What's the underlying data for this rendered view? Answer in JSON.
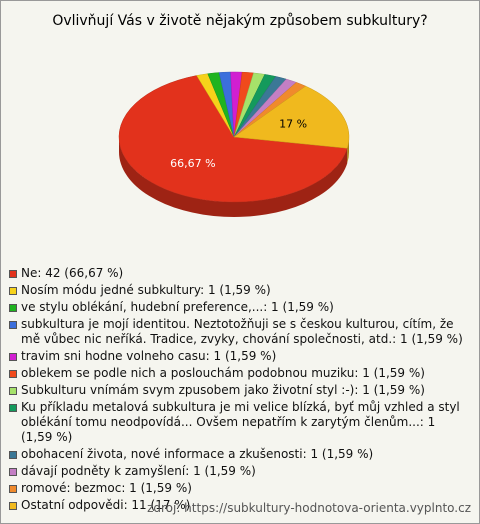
{
  "chart_data": {
    "type": "pie",
    "title": "Ovlivňují Vás v životě nějakým způsobem subkultury?",
    "categories": [
      "Ne: 42 (66,67 %)",
      "Nosím módu jedné subkultury: 1 (1,59 %)",
      "ve stylu oblékání, hudební preference,...: 1 (1,59 %)",
      "subkultura je mojí identitou.  Neztotožňuji se s českou kulturou, cítím, že mě vůbec nic neříká. Tradice, zvyky, chování společnosti, atd.: 1 (1,59 %)",
      "travim sni hodne volneho casu: 1 (1,59 %)",
      "oblekem se podle nich a poslouchám podobnou muziku: 1 (1,59 %)",
      "Subkulturu vnímám svym zpusobem jako životní styl :-): 1 (1,59 %)",
      "Ku příkladu metalová subkultura je mi velice blízká, byť můj vzhled a styl oblékání tomu neodpovídá... Ovšem nepatřím k zarytým členům...: 1 (1,59 %)",
      "obohacení života, nové informace a zkušenosti: 1 (1,59 %)",
      "dávají podněty k zamyšlení: 1 (1,59 %)",
      "romové: bezmoc: 1 (1,59 %)",
      "Ostatní odpovědi: 11 (17 %)"
    ],
    "values": [
      66.67,
      1.59,
      1.59,
      1.59,
      1.59,
      1.59,
      1.59,
      1.59,
      1.59,
      1.59,
      1.59,
      17
    ],
    "value_labels": [
      "66,67 %",
      null,
      null,
      null,
      null,
      null,
      null,
      null,
      null,
      null,
      null,
      "17 %"
    ],
    "colors": [
      "#e2321c",
      "#f6d21a",
      "#1fb31f",
      "#3c6fdc",
      "#d11fd1",
      "#f04a1c",
      "#a6e26a",
      "#149a5c",
      "#3b7896",
      "#c47fc4",
      "#f08a2c",
      "#f0b91e"
    ],
    "source": "zdroj: https://subkultury-hodnotova-orienta.vyplnto.cz"
  }
}
